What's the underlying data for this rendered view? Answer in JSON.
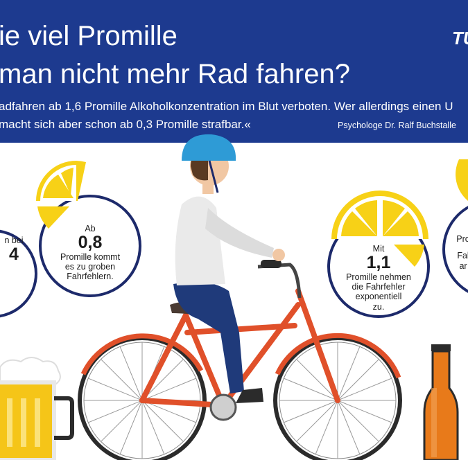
{
  "header": {
    "title_line1": "ie viel Promille",
    "title_line2": "man nicht mehr Rad fahren?",
    "subtitle_line1": "adfahren ab 1,6 Promille Alkoholkonzentration im Blut verboten. Wer allerdings einen U",
    "subtitle_line2": "macht sich aber schon ab 0,3 Promille strafbar.«",
    "attribution": "Psychologe Dr. Ralf Buchstalle",
    "logo": "TÜ",
    "background_color": "#1d3a8f"
  },
  "circles": [
    {
      "label": "n bei",
      "value": "4"
    },
    {
      "prefix": "Ab",
      "value": "0,8",
      "text_line1": "Promille kommt",
      "text_line2": "es zu groben",
      "text_line3": "Fahrfehlern."
    },
    {
      "prefix": "Mit",
      "value": "1,1",
      "text_line1": "Promille nehmen",
      "text_line2": "die Fahrfehler",
      "text_line3": "exponentiell",
      "text_line4": "zu."
    },
    {
      "text_line1": "Pro",
      "text_line2": "Fal",
      "text_line3": "ar"
    }
  ],
  "icons": [
    "helmet-icon",
    "lemon-slice-icon",
    "beer-mug-icon",
    "bottle-icon",
    "bicycle-icon"
  ],
  "colors": {
    "circle_ring": "#1d2a6b",
    "lemon": "#f7d117",
    "bike": "#e0502a",
    "helmet": "#2e9bd6",
    "beer": "#f5c518",
    "bottle": "#e87a1a"
  }
}
